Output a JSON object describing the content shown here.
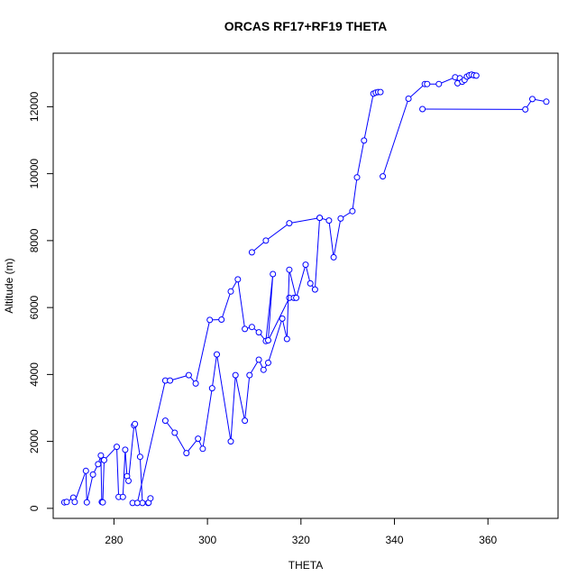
{
  "chart_data": {
    "type": "line",
    "title": "ORCAS RF17+RF19 THETA",
    "xlabel": "THETA",
    "ylabel": "Altitude (m)",
    "xlim": [
      267,
      375
    ],
    "ylim": [
      -300,
      13600
    ],
    "xticks": [
      280,
      300,
      320,
      340,
      360
    ],
    "yticks": [
      0,
      2000,
      4000,
      6000,
      8000,
      10000,
      12000
    ],
    "xtick_labels": [
      "280",
      "300",
      "320",
      "340",
      "360"
    ],
    "ytick_labels": [
      "0",
      "2000",
      "4000",
      "6000",
      "8000",
      "10000",
      "12000"
    ],
    "grid": false,
    "legend": "none",
    "series_color": "#0000ff",
    "series": [
      {
        "x": [
          269.4,
          269.9,
          271.3,
          271.6,
          274.0,
          274.2,
          275.5,
          276.6,
          277.2,
          277.4,
          277.6,
          277.9,
          280.6,
          281.0,
          281.9,
          282.4,
          282.8,
          283.1,
          284.3,
          284.5,
          285.6,
          286.1,
          287.3,
          287.4,
          287.8
        ],
        "y": [
          180,
          190,
          320,
          190,
          1120,
          180,
          1010,
          1320,
          1580,
          190,
          180,
          1440,
          1840,
          340,
          340,
          1750,
          960,
          820,
          2480,
          2520,
          1540,
          160,
          160,
          170,
          300
        ]
      },
      {
        "x": [
          284.0,
          285.0,
          291.0,
          292.0,
          296.0,
          297.5,
          300.5,
          303.0,
          305.0,
          306.5,
          308.0,
          309.5,
          311.0,
          312.5,
          314.0,
          313.0,
          317.5,
          318.5
        ],
        "y": [
          160,
          160,
          3820,
          3820,
          3980,
          3730,
          5630,
          5640,
          6480,
          6840,
          5360,
          5420,
          5260,
          5000,
          7000,
          5020,
          6290,
          6290
        ]
      },
      {
        "x": [
          291.0,
          293.0,
          295.5,
          298.0,
          299.0,
          301.0,
          302.0,
          305.0,
          306.0,
          308.0,
          309.0,
          311.0,
          312.0,
          313.0,
          316.0,
          317.0,
          317.5,
          319.0,
          321.0,
          322.0,
          323.0,
          324.0
        ],
        "y": [
          2620,
          2260,
          1650,
          2080,
          1780,
          3590,
          4600,
          2000,
          3980,
          2620,
          3980,
          4440,
          4140,
          4350,
          5670,
          5060,
          7130,
          6290,
          7280,
          6720,
          6540,
          8680
        ]
      },
      {
        "x": [
          309.5,
          312.5,
          317.5,
          324.0,
          326.0,
          327.0,
          328.5,
          331.0,
          332.0,
          333.5,
          335.5,
          336.0,
          336.5,
          337.0
        ],
        "y": [
          7650,
          8000,
          8520,
          8680,
          8600,
          7500,
          8660,
          8880,
          9890,
          10990,
          12390,
          12420,
          12440,
          12440
        ]
      },
      {
        "x": [
          337.5,
          343.0,
          346.5,
          347.0,
          349.5,
          353.0,
          353.5,
          354.0,
          354.5,
          355.0,
          355.5,
          356.0,
          356.5,
          357.0,
          357.5
        ],
        "y": [
          9920,
          12240,
          12680,
          12680,
          12680,
          12880,
          12700,
          12850,
          12750,
          12800,
          12900,
          12940,
          12960,
          12940,
          12930
        ]
      },
      {
        "x": [
          346.0,
          368.0,
          369.5,
          372.5
        ],
        "y": [
          11930,
          11920,
          12230,
          12150
        ]
      }
    ]
  }
}
